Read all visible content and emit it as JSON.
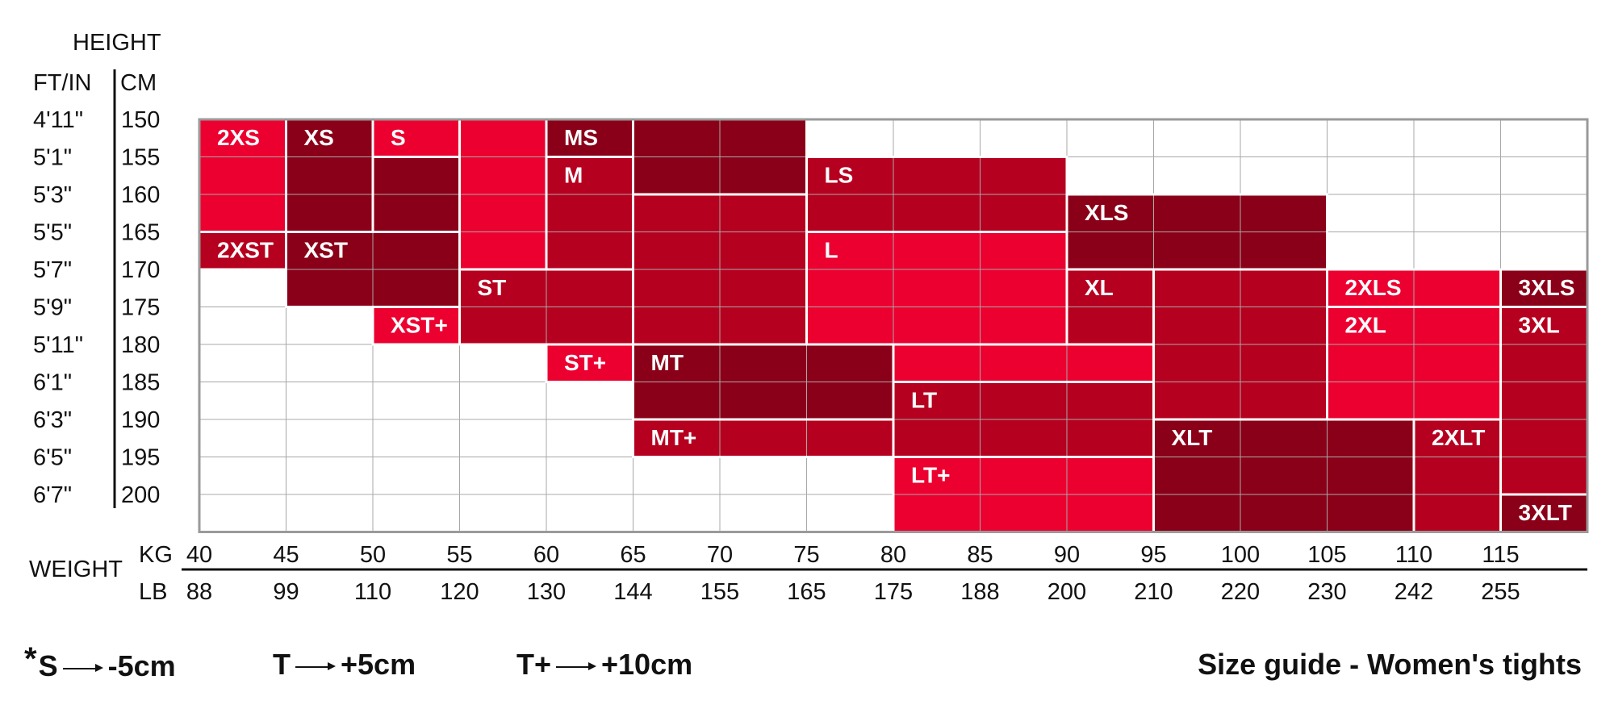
{
  "chart_data": {
    "type": "heatmap",
    "title": "Size guide - Women's tights",
    "height_header": "HEIGHT",
    "height_units": {
      "ft_in": "FT/IN",
      "cm": "CM"
    },
    "height_rows": [
      {
        "ft_in": "4'11\"",
        "cm": "150"
      },
      {
        "ft_in": "5'1\"",
        "cm": "155"
      },
      {
        "ft_in": "5'3\"",
        "cm": "160"
      },
      {
        "ft_in": "5'5\"",
        "cm": "165"
      },
      {
        "ft_in": "5'7\"",
        "cm": "170"
      },
      {
        "ft_in": "5'9\"",
        "cm": "175"
      },
      {
        "ft_in": "5'11\"",
        "cm": "180"
      },
      {
        "ft_in": "6'1\"",
        "cm": "185"
      },
      {
        "ft_in": "6'3\"",
        "cm": "190"
      },
      {
        "ft_in": "6'5\"",
        "cm": "195"
      },
      {
        "ft_in": "6'7\"",
        "cm": "200"
      }
    ],
    "weight_header": "WEIGHT",
    "weight_units": {
      "kg": "KG",
      "lb": "LB"
    },
    "weight_kg": [
      "40",
      "45",
      "50",
      "55",
      "60",
      "65",
      "70",
      "75",
      "80",
      "85",
      "90",
      "95",
      "100",
      "105",
      "110",
      "115"
    ],
    "weight_lb": [
      "88",
      "99",
      "110",
      "120",
      "130",
      "144",
      "155",
      "165",
      "175",
      "188",
      "200",
      "210",
      "220",
      "230",
      "242",
      "255"
    ],
    "colors": {
      "bright": "#ec0030",
      "medium": "#b6001f",
      "dark": "#8a0018",
      "grid": "#a8a8a8",
      "frame": "#9a9a9a"
    },
    "zones": [
      {
        "label": "2XS",
        "kg": [
          40,
          45
        ],
        "cm": [
          150,
          160
        ],
        "shade": "bright",
        "parts": [
          [
            40,
            45,
            150,
            165
          ]
        ]
      },
      {
        "label": "XS",
        "kg": [
          45,
          55
        ],
        "cm": [
          150,
          160
        ],
        "shade": "dark",
        "parts": [
          [
            45,
            50,
            150,
            165
          ],
          [
            50,
            55,
            155,
            165
          ]
        ]
      },
      {
        "label": "S",
        "kg": [
          50,
          55
        ],
        "cm": [
          150,
          155
        ],
        "shade": "bright",
        "parts": [
          [
            50,
            55,
            150,
            155
          ],
          [
            55,
            60,
            150,
            170
          ]
        ]
      },
      {
        "label": "2XST",
        "kg": [
          40,
          45
        ],
        "cm": [
          165,
          170
        ],
        "shade": "medium",
        "parts": [
          [
            40,
            45,
            165,
            170
          ]
        ]
      },
      {
        "label": "XST",
        "kg": [
          45,
          55
        ],
        "cm": [
          165,
          175
        ],
        "shade": "dark",
        "parts": [
          [
            45,
            55,
            165,
            175
          ]
        ]
      },
      {
        "label": "ST",
        "kg": [
          55,
          65
        ],
        "cm": [
          170,
          180
        ],
        "shade": "medium",
        "parts": [
          [
            55,
            65,
            170,
            180
          ]
        ]
      },
      {
        "label": "XST+",
        "kg": [
          50,
          55
        ],
        "cm": [
          175,
          180
        ],
        "shade": "bright",
        "parts": [
          [
            50,
            55,
            175,
            180
          ]
        ]
      },
      {
        "label": "ST+",
        "kg": [
          60,
          65
        ],
        "cm": [
          180,
          185
        ],
        "shade": "bright",
        "parts": [
          [
            60,
            65,
            180,
            185
          ]
        ]
      },
      {
        "label": "MS",
        "kg": [
          60,
          75
        ],
        "cm": [
          150,
          160
        ],
        "shade": "dark",
        "parts": [
          [
            60,
            65,
            150,
            155
          ],
          [
            65,
            75,
            150,
            160
          ]
        ]
      },
      {
        "label": "M",
        "kg": [
          60,
          75
        ],
        "cm": [
          155,
          180
        ],
        "shade": "medium",
        "parts": [
          [
            60,
            65,
            155,
            170
          ],
          [
            65,
            75,
            160,
            180
          ]
        ]
      },
      {
        "label": "MT",
        "kg": [
          65,
          80
        ],
        "cm": [
          180,
          190
        ],
        "shade": "dark",
        "parts": [
          [
            65,
            80,
            180,
            190
          ]
        ]
      },
      {
        "label": "MT+",
        "kg": [
          65,
          80
        ],
        "cm": [
          190,
          195
        ],
        "shade": "medium",
        "parts": [
          [
            65,
            80,
            190,
            195
          ]
        ]
      },
      {
        "label": "LS",
        "kg": [
          75,
          90
        ],
        "cm": [
          155,
          165
        ],
        "shade": "medium",
        "parts": [
          [
            75,
            90,
            155,
            165
          ]
        ]
      },
      {
        "label": "L",
        "kg": [
          75,
          95
        ],
        "cm": [
          165,
          185
        ],
        "shade": "bright",
        "parts": [
          [
            75,
            90,
            165,
            180
          ],
          [
            80,
            95,
            180,
            185
          ]
        ]
      },
      {
        "label": "LT",
        "kg": [
          80,
          95
        ],
        "cm": [
          185,
          195
        ],
        "shade": "medium",
        "parts": [
          [
            80,
            95,
            185,
            195
          ]
        ]
      },
      {
        "label": "LT+",
        "kg": [
          80,
          95
        ],
        "cm": [
          195,
          200
        ],
        "shade": "bright",
        "parts": [
          [
            80,
            95,
            195,
            205
          ]
        ]
      },
      {
        "label": "XLS",
        "kg": [
          90,
          105
        ],
        "cm": [
          160,
          170
        ],
        "shade": "dark",
        "parts": [
          [
            90,
            105,
            160,
            170
          ]
        ]
      },
      {
        "label": "XL",
        "kg": [
          90,
          105
        ],
        "cm": [
          170,
          190
        ],
        "shade": "medium",
        "parts": [
          [
            90,
            95,
            170,
            180
          ],
          [
            95,
            105,
            170,
            190
          ]
        ]
      },
      {
        "label": "XLT",
        "kg": [
          95,
          110
        ],
        "cm": [
          190,
          200
        ],
        "shade": "dark",
        "parts": [
          [
            95,
            110,
            190,
            205
          ]
        ]
      },
      {
        "label": "2XLS",
        "kg": [
          105,
          115
        ],
        "cm": [
          170,
          175
        ],
        "shade": "bright",
        "parts": [
          [
            105,
            115,
            170,
            175
          ]
        ]
      },
      {
        "label": "2XL",
        "kg": [
          105,
          115
        ],
        "cm": [
          175,
          190
        ],
        "shade": "bright",
        "parts": [
          [
            105,
            115,
            175,
            190
          ]
        ]
      },
      {
        "label": "2XLT",
        "kg": [
          110,
          115
        ],
        "cm": [
          190,
          200
        ],
        "shade": "medium",
        "parts": [
          [
            110,
            115,
            190,
            205
          ]
        ]
      },
      {
        "label": "3XLS",
        "kg": [
          115,
          120
        ],
        "cm": [
          170,
          175
        ],
        "shade": "dark",
        "parts": [
          [
            115,
            120,
            170,
            175
          ]
        ]
      },
      {
        "label": "3XL",
        "kg": [
          115,
          120
        ],
        "cm": [
          175,
          200
        ],
        "shade": "medium",
        "parts": [
          [
            115,
            120,
            175,
            200
          ]
        ]
      },
      {
        "label": "3XLT",
        "kg": [
          115,
          120
        ],
        "cm": [
          200,
          205
        ],
        "shade": "dark",
        "parts": [
          [
            115,
            120,
            200,
            205
          ]
        ]
      }
    ]
  },
  "legend": {
    "star": "*",
    "items": [
      {
        "key": "S",
        "value": "-5cm"
      },
      {
        "key": "T",
        "value": "+5cm"
      },
      {
        "key": "T+",
        "value": "+10cm"
      }
    ]
  }
}
